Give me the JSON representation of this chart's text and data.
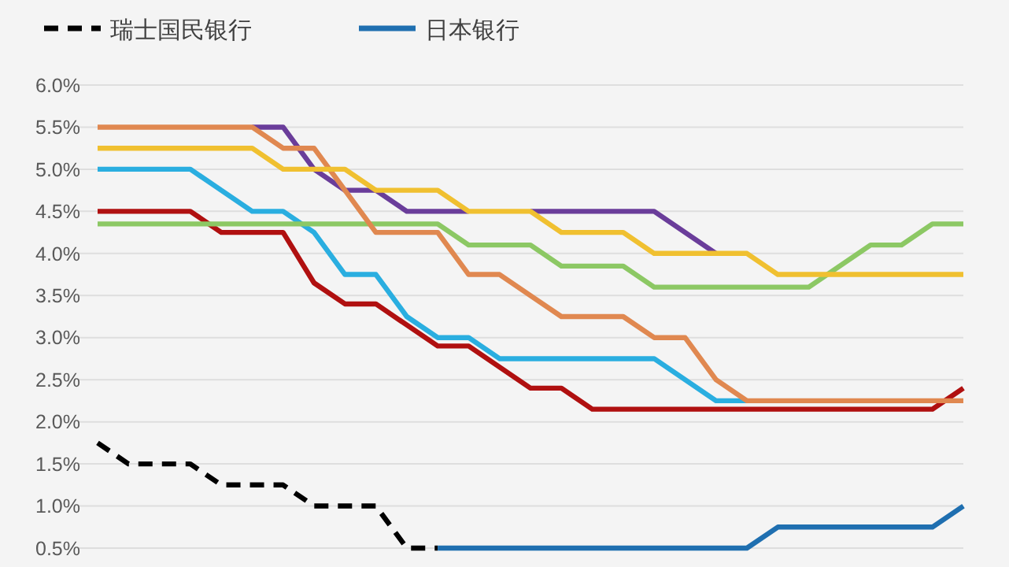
{
  "chart_data": {
    "type": "line",
    "categories": [
      null,
      null,
      null,
      null,
      null,
      null,
      null,
      null,
      null,
      null,
      null,
      null,
      null,
      null,
      null,
      null,
      null,
      null,
      null,
      null,
      null,
      null,
      null,
      null,
      null,
      null,
      null,
      null,
      null
    ],
    "series": [
      {
        "name": "瑞士国民银行",
        "color": "#000000",
        "line_style": "dashed",
        "values": [
          1.75,
          1.5,
          1.5,
          1.5,
          1.25,
          1.25,
          1.25,
          1.0,
          1.0,
          1.0,
          0.5,
          0.5,
          null,
          null,
          null,
          null,
          null,
          null,
          null,
          null,
          null,
          null,
          null,
          null,
          null,
          null,
          null,
          null,
          null
        ]
      },
      {
        "name": "日本银行",
        "color": "#1f6fb0",
        "values": [
          null,
          null,
          null,
          null,
          null,
          null,
          null,
          null,
          null,
          null,
          null,
          0.5,
          0.5,
          0.5,
          0.5,
          0.5,
          0.5,
          0.5,
          0.5,
          0.5,
          0.5,
          0.5,
          0.75,
          0.75,
          0.75,
          0.75,
          0.75,
          0.75,
          1.0
        ]
      },
      {
        "color": "#6a3d9a",
        "values": [
          null,
          null,
          null,
          null,
          null,
          5.5,
          5.5,
          5.0,
          4.75,
          4.75,
          4.5,
          4.5,
          4.5,
          null,
          4.5,
          4.5,
          4.5,
          4.5,
          4.5,
          4.25,
          4.0,
          null,
          null,
          null,
          null,
          null,
          null,
          null,
          null
        ]
      },
      {
        "color": "#b01010",
        "values": [
          4.5,
          4.5,
          4.5,
          4.5,
          4.25,
          4.25,
          4.25,
          3.65,
          3.4,
          3.4,
          3.15,
          2.9,
          2.9,
          2.65,
          2.4,
          2.4,
          2.15,
          2.15,
          2.15,
          2.15,
          2.15,
          2.15,
          2.15,
          2.15,
          2.15,
          2.15,
          2.15,
          2.15,
          2.4
        ]
      },
      {
        "color": "#2aaee0",
        "values": [
          5.0,
          5.0,
          5.0,
          5.0,
          4.75,
          4.5,
          4.5,
          4.25,
          3.75,
          3.75,
          3.25,
          3.0,
          3.0,
          2.75,
          2.75,
          2.75,
          2.75,
          2.75,
          2.75,
          2.5,
          2.25,
          2.25,
          null,
          null,
          null,
          null,
          null,
          null,
          null
        ]
      },
      {
        "color": "#8cc864",
        "values": [
          4.35,
          4.35,
          4.35,
          4.35,
          4.35,
          4.35,
          4.35,
          4.35,
          4.35,
          4.35,
          4.35,
          4.35,
          4.1,
          4.1,
          4.1,
          3.85,
          3.85,
          3.85,
          3.6,
          3.6,
          3.6,
          3.6,
          3.6,
          3.6,
          3.85,
          4.1,
          4.1,
          4.35,
          4.35
        ]
      },
      {
        "color": "#e08850",
        "values": [
          5.5,
          5.5,
          5.5,
          5.5,
          5.5,
          5.5,
          5.25,
          5.25,
          4.75,
          4.25,
          4.25,
          4.25,
          3.75,
          3.75,
          3.5,
          3.25,
          3.25,
          3.25,
          3.0,
          3.0,
          2.5,
          2.25,
          2.25,
          2.25,
          2.25,
          2.25,
          2.25,
          2.25,
          2.25
        ]
      },
      {
        "color": "#f0c030",
        "values": [
          5.25,
          5.25,
          5.25,
          5.25,
          5.25,
          5.25,
          5.0,
          5.0,
          5.0,
          4.75,
          4.75,
          4.75,
          4.5,
          4.5,
          4.5,
          4.25,
          4.25,
          4.25,
          4.0,
          4.0,
          4.0,
          4.0,
          3.75,
          3.75,
          3.75,
          3.75,
          3.75,
          3.75,
          3.75
        ]
      }
    ],
    "ylim": [
      0.5,
      6.0
    ],
    "yticks": [
      {
        "value": 0.5,
        "label": "0.5%"
      },
      {
        "value": 1.0,
        "label": "1.0%"
      },
      {
        "value": 1.5,
        "label": "1.5%"
      },
      {
        "value": 2.0,
        "label": "2.0%"
      },
      {
        "value": 2.5,
        "label": "2.5%"
      },
      {
        "value": 3.0,
        "label": "3.0%"
      },
      {
        "value": 3.5,
        "label": "3.5%"
      },
      {
        "value": 4.0,
        "label": "4.0%"
      },
      {
        "value": 4.5,
        "label": "4.5%"
      },
      {
        "value": 5.0,
        "label": "5.0%"
      },
      {
        "value": 5.5,
        "label": "5.5%"
      },
      {
        "value": 6.0,
        "label": "6.0%"
      }
    ],
    "grid": "y",
    "legend": "top",
    "tick_labels": "y"
  }
}
